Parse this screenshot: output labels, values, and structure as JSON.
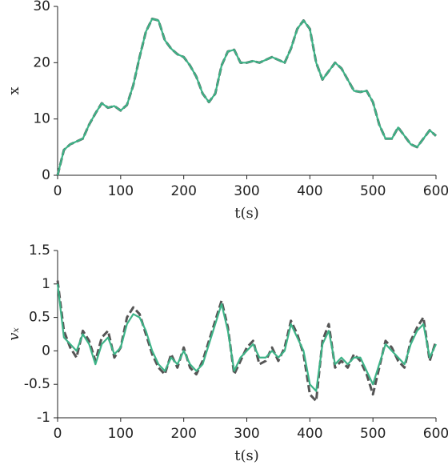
{
  "chart_data": [
    {
      "type": "line",
      "xlabel": "t(s)",
      "ylabel": "x",
      "xlim": [
        0,
        600
      ],
      "ylim": [
        0,
        30
      ],
      "xticks": [
        0,
        100,
        200,
        300,
        400,
        500,
        600
      ],
      "yticks": [
        0,
        10,
        20,
        30
      ],
      "grid": false,
      "x": [
        0,
        10,
        20,
        30,
        40,
        50,
        60,
        70,
        80,
        90,
        100,
        110,
        120,
        130,
        140,
        150,
        160,
        170,
        180,
        190,
        200,
        210,
        220,
        230,
        240,
        250,
        260,
        270,
        280,
        290,
        300,
        310,
        320,
        330,
        340,
        350,
        360,
        370,
        380,
        390,
        400,
        410,
        420,
        430,
        440,
        450,
        460,
        470,
        480,
        490,
        500,
        510,
        520,
        530,
        540,
        550,
        560,
        570,
        580,
        590,
        600
      ],
      "series": [
        {
          "color": "#555555",
          "dash": true,
          "values": [
            0,
            4.5,
            5.5,
            6,
            6.5,
            9,
            11,
            12.8,
            12,
            12.3,
            11.5,
            12.5,
            16,
            21,
            25.5,
            27.8,
            27.5,
            24,
            22.5,
            21.5,
            21,
            19.5,
            17.5,
            14.5,
            13,
            14.5,
            19.5,
            22,
            22.3,
            20,
            20,
            20.3,
            20,
            20.5,
            21,
            20.5,
            20,
            22.5,
            26,
            27.5,
            26,
            20,
            17,
            18.5,
            20,
            19,
            17,
            15,
            14.8,
            15,
            13,
            9,
            6.5,
            6.5,
            8.5,
            7,
            5.5,
            5,
            6.5,
            8,
            7
          ]
        },
        {
          "color": "#3db387",
          "dash": false,
          "values": [
            0,
            4.5,
            5.5,
            6,
            6.5,
            9,
            11,
            12.8,
            12,
            12.3,
            11.5,
            12.5,
            16,
            21,
            25.5,
            27.8,
            27.5,
            24,
            22.5,
            21.5,
            21,
            19.5,
            17.5,
            14.5,
            13,
            14.5,
            19.5,
            22,
            22.3,
            20,
            20,
            20.3,
            20,
            20.5,
            21,
            20.5,
            20,
            22.5,
            26,
            27.5,
            26,
            20,
            17,
            18.5,
            20,
            19,
            17,
            15,
            14.8,
            15,
            13,
            9,
            6.5,
            6.5,
            8.5,
            7,
            5.5,
            5,
            6.5,
            8,
            7
          ]
        }
      ]
    },
    {
      "type": "line",
      "xlabel": "t(s)",
      "ylabel": "vₓ",
      "xlim": [
        0,
        600
      ],
      "ylim": [
        -1,
        1.5
      ],
      "xticks": [
        0,
        100,
        200,
        300,
        400,
        500,
        600
      ],
      "yticks": [
        -1,
        -0.5,
        0,
        0.5,
        1,
        1.5
      ],
      "grid": false,
      "x": [
        0,
        10,
        20,
        30,
        40,
        50,
        60,
        70,
        80,
        90,
        100,
        110,
        120,
        130,
        140,
        150,
        160,
        170,
        180,
        190,
        200,
        210,
        220,
        230,
        240,
        250,
        260,
        270,
        280,
        290,
        300,
        310,
        320,
        330,
        340,
        350,
        360,
        370,
        380,
        390,
        400,
        410,
        420,
        430,
        440,
        450,
        460,
        470,
        480,
        490,
        500,
        510,
        520,
        530,
        540,
        550,
        560,
        570,
        580,
        590,
        600
      ],
      "series": [
        {
          "color": "#555555",
          "dash": true,
          "values": [
            1.05,
            0.3,
            0.05,
            -0.1,
            0.3,
            0.15,
            -0.15,
            0.2,
            0.3,
            -0.1,
            0.05,
            0.5,
            0.65,
            0.55,
            0.25,
            -0.05,
            -0.25,
            -0.35,
            -0.05,
            -0.25,
            0.05,
            -0.25,
            -0.35,
            -0.15,
            0.15,
            0.45,
            0.75,
            0.35,
            -0.35,
            -0.15,
            0.05,
            0.15,
            -0.2,
            -0.15,
            0.05,
            -0.15,
            0.05,
            0.45,
            0.25,
            -0.05,
            -0.65,
            -0.75,
            0.15,
            0.4,
            -0.25,
            -0.15,
            -0.25,
            -0.05,
            -0.15,
            -0.35,
            -0.65,
            -0.25,
            0.15,
            0.05,
            -0.15,
            -0.25,
            0.15,
            0.35,
            0.5,
            -0.15,
            0.15
          ]
        },
        {
          "color": "#3db387",
          "dash": false,
          "values": [
            1.0,
            0.2,
            0.1,
            0.0,
            0.25,
            0.1,
            -0.2,
            0.1,
            0.2,
            -0.05,
            0.05,
            0.4,
            0.55,
            0.5,
            0.3,
            0.0,
            -0.2,
            -0.3,
            -0.1,
            -0.2,
            0.0,
            -0.2,
            -0.3,
            -0.2,
            0.1,
            0.4,
            0.7,
            0.3,
            -0.3,
            -0.1,
            0.0,
            0.1,
            -0.1,
            -0.1,
            0.0,
            -0.1,
            0.0,
            0.4,
            0.2,
            0.0,
            -0.5,
            -0.6,
            0.1,
            0.3,
            -0.2,
            -0.1,
            -0.2,
            -0.1,
            -0.1,
            -0.3,
            -0.5,
            -0.2,
            0.1,
            0.0,
            -0.1,
            -0.2,
            0.1,
            0.3,
            0.4,
            -0.1,
            0.1
          ]
        }
      ]
    }
  ]
}
